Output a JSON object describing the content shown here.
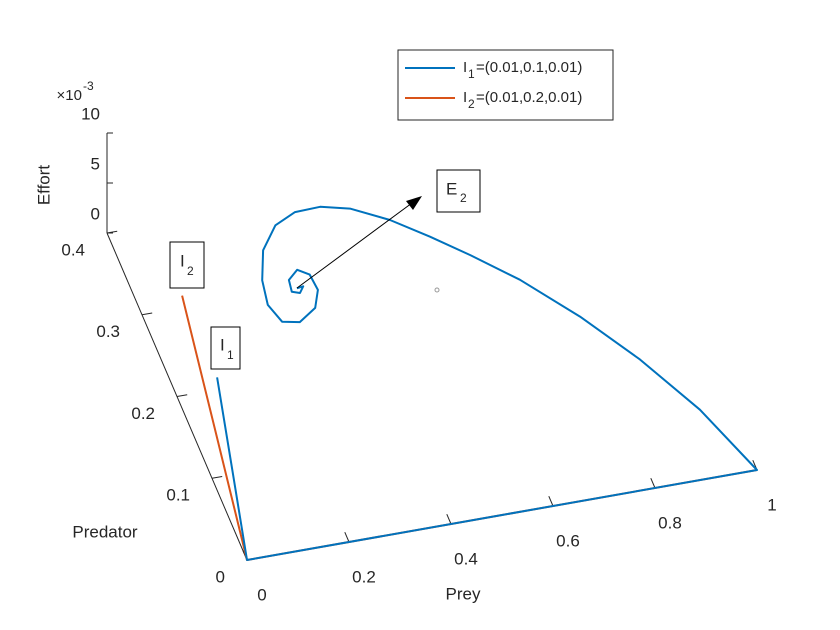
{
  "chart_data": {
    "type": "line3d",
    "xlabel": "Prey",
    "ylabel": "Predator",
    "zlabel": "Effort",
    "zexponent_base": "×10",
    "zexponent_power": "-3",
    "xlim": [
      0,
      1
    ],
    "ylim": [
      0,
      0.4
    ],
    "zlim": [
      0,
      0.01
    ],
    "xticks": [
      0,
      0.2,
      0.4,
      0.6,
      0.8,
      1
    ],
    "yticks": [
      0,
      0.1,
      0.2,
      0.3,
      0.4
    ],
    "zticks": [
      0,
      {
        "value": 0.005,
        "label": "5"
      },
      {
        "value": 0.01,
        "label": "10"
      }
    ],
    "series": [
      {
        "name": "I",
        "name_sub": "1",
        "name_rest": "=(0.01,0.1,0.01)",
        "color": "#0072BD",
        "x": [
          0.01,
          0.005,
          0,
          0.5,
          1,
          0.943,
          0.873,
          0.797,
          0.716,
          0.645,
          0.586,
          0.526,
          0.462,
          0.409,
          0.359,
          0.313,
          0.271,
          0.246,
          0.237,
          0.25,
          0.282,
          0.321,
          0.34,
          0.337,
          0.318,
          0.295,
          0.291,
          0.305,
          0.316,
          0.303
        ],
        "y": [
          0.1,
          0.05,
          0,
          0,
          0,
          0.08,
          0.149,
          0.21,
          0.264,
          0.302,
          0.331,
          0.358,
          0.379,
          0.387,
          0.386,
          0.375,
          0.349,
          0.315,
          0.286,
          0.264,
          0.26,
          0.273,
          0.293,
          0.312,
          0.32,
          0.31,
          0.296,
          0.293,
          0.3,
          0.299
        ],
        "z": [
          0.01,
          0.005,
          0,
          0,
          0,
          0,
          0,
          0,
          0,
          0,
          0,
          0,
          0,
          0,
          0,
          0,
          0,
          0,
          0,
          0,
          0,
          0,
          0,
          0,
          0,
          0,
          0,
          0,
          0,
          0
        ]
      },
      {
        "name": "I",
        "name_sub": "2",
        "name_rest": "=(0.01,0.2,0.01)",
        "color": "#D95319",
        "x": [
          0.01,
          0.005,
          0,
          0.5,
          1
        ],
        "y": [
          0.2,
          0.1,
          0,
          0,
          0
        ],
        "z": [
          0.01,
          0.005,
          0,
          0,
          0
        ]
      }
    ],
    "annotations": [
      {
        "text": "E",
        "sub": "2"
      },
      {
        "text": "I",
        "sub": "1"
      },
      {
        "text": "I",
        "sub": "2"
      }
    ]
  }
}
